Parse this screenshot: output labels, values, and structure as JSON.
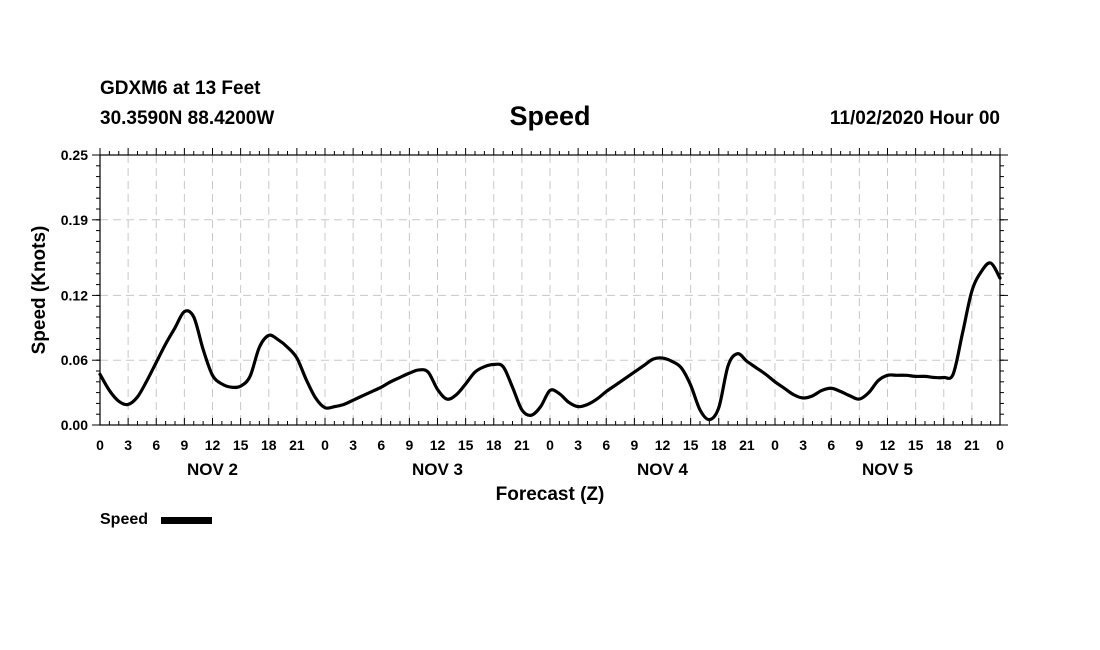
{
  "header": {
    "station_line": "GDXM6 at 13 Feet",
    "location_line": "30.3590N 88.4200W",
    "title": "Speed",
    "timestamp": "11/02/2020 Hour 00"
  },
  "legend": {
    "label": "Speed"
  },
  "chart_data": {
    "type": "line",
    "title": "Speed",
    "xlabel": "Forecast (Z)",
    "ylabel": "Speed (Knots)",
    "y_ticks": [
      "0.00",
      "0.06",
      "0.12",
      "0.19",
      "0.25"
    ],
    "ylim": [
      0,
      0.25
    ],
    "xlim": [
      0,
      96
    ],
    "x_units": "hours from 11/02/2020 00Z",
    "x_tick_hours": [
      0,
      3,
      6,
      9,
      12,
      15,
      18,
      21,
      24,
      27,
      30,
      33,
      36,
      39,
      42,
      45,
      48,
      51,
      54,
      57,
      60,
      63,
      66,
      69,
      72,
      75,
      78,
      81,
      84,
      87,
      90,
      93,
      96
    ],
    "x_tick_labels": [
      "0",
      "3",
      "6",
      "9",
      "12",
      "15",
      "18",
      "21",
      "0",
      "3",
      "6",
      "9",
      "12",
      "15",
      "18",
      "21",
      "0",
      "3",
      "6",
      "9",
      "12",
      "15",
      "18",
      "21",
      "0",
      "3",
      "6",
      "9",
      "12",
      "15",
      "18",
      "21",
      "0"
    ],
    "day_labels": [
      {
        "label": "NOV 2",
        "hour": 12
      },
      {
        "label": "NOV 3",
        "hour": 36
      },
      {
        "label": "NOV 4",
        "hour": 60
      },
      {
        "label": "NOV 5",
        "hour": 84
      }
    ],
    "grid": true,
    "legend_position": "bottom-left",
    "line_color": "#000000",
    "series": [
      {
        "name": "Speed",
        "x": [
          0,
          1,
          2,
          3,
          4,
          5,
          6,
          7,
          8,
          9,
          10,
          11,
          12,
          13,
          14,
          15,
          16,
          17,
          18,
          19,
          20,
          21,
          22,
          23,
          24,
          25,
          26,
          27,
          28,
          29,
          30,
          31,
          32,
          33,
          34,
          35,
          36,
          37,
          38,
          39,
          40,
          41,
          42,
          43,
          44,
          45,
          46,
          47,
          48,
          49,
          50,
          51,
          52,
          53,
          54,
          55,
          56,
          57,
          58,
          59,
          60,
          61,
          62,
          63,
          64,
          65,
          66,
          67,
          68,
          69,
          70,
          71,
          72,
          73,
          74,
          75,
          76,
          77,
          78,
          79,
          80,
          81,
          82,
          83,
          84,
          85,
          86,
          87,
          88,
          89,
          90,
          91,
          92,
          93,
          94,
          95,
          96
        ],
        "values": [
          0.047,
          0.032,
          0.022,
          0.019,
          0.026,
          0.041,
          0.058,
          0.075,
          0.09,
          0.105,
          0.1,
          0.07,
          0.046,
          0.038,
          0.035,
          0.036,
          0.045,
          0.072,
          0.083,
          0.079,
          0.072,
          0.062,
          0.042,
          0.025,
          0.016,
          0.017,
          0.019,
          0.023,
          0.027,
          0.031,
          0.035,
          0.04,
          0.044,
          0.048,
          0.051,
          0.049,
          0.033,
          0.024,
          0.028,
          0.038,
          0.049,
          0.054,
          0.056,
          0.054,
          0.035,
          0.014,
          0.009,
          0.017,
          0.032,
          0.029,
          0.021,
          0.017,
          0.019,
          0.024,
          0.031,
          0.037,
          0.043,
          0.049,
          0.055,
          0.061,
          0.062,
          0.059,
          0.053,
          0.037,
          0.014,
          0.005,
          0.016,
          0.055,
          0.066,
          0.059,
          0.053,
          0.047,
          0.04,
          0.034,
          0.028,
          0.025,
          0.027,
          0.032,
          0.034,
          0.031,
          0.027,
          0.024,
          0.03,
          0.041,
          0.046,
          0.046,
          0.046,
          0.045,
          0.045,
          0.044,
          0.044,
          0.047,
          0.085,
          0.124,
          0.142,
          0.15,
          0.136
        ]
      }
    ]
  }
}
